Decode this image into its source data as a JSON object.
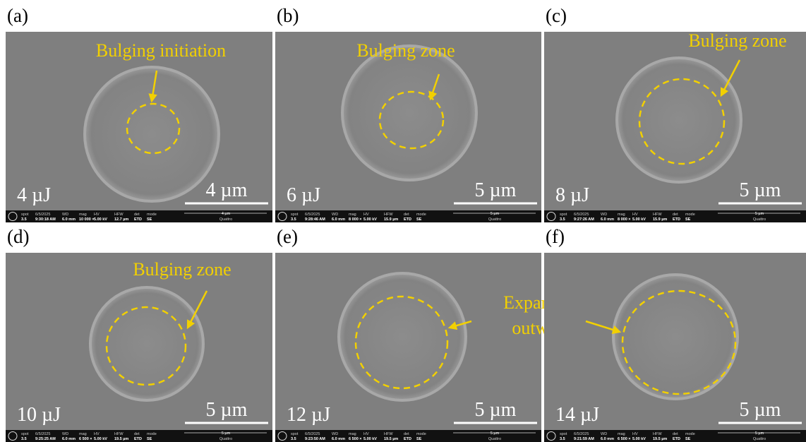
{
  "panels": [
    {
      "label": "(a)",
      "energy": "4 µJ",
      "annotation": [
        "Bulging initiation"
      ],
      "scale": "4 µm",
      "info": {
        "fields": [
          [
            "spot",
            "3.5"
          ],
          [
            "6/5/2025",
            "9:30:18 AM"
          ],
          [
            "WD",
            "6.0 mm"
          ],
          [
            "mag",
            "10 000 ×"
          ],
          [
            "HV",
            "5.00 kV"
          ],
          [
            "HFW",
            "12.7 µm"
          ],
          [
            "det",
            "ETD"
          ],
          [
            "mode",
            "SE"
          ]
        ],
        "bar": "4 µm",
        "instrument": "Quattro"
      }
    },
    {
      "label": "(b)",
      "energy": "6 µJ",
      "annotation": [
        "Bulging zone"
      ],
      "scale": "5 µm",
      "info": {
        "fields": [
          [
            "spot",
            "3.5"
          ],
          [
            "6/5/2025",
            "9:28:46 AM"
          ],
          [
            "WD",
            "6.0 mm"
          ],
          [
            "mag",
            "8 000 ×"
          ],
          [
            "HV",
            "5.00 kV"
          ],
          [
            "HFW",
            "15.9 µm"
          ],
          [
            "det",
            "ETD"
          ],
          [
            "mode",
            "SE"
          ]
        ],
        "bar": "5 µm",
        "instrument": "Quattro"
      }
    },
    {
      "label": "(c)",
      "energy": "8 µJ",
      "annotation": [
        "Bulging zone"
      ],
      "scale": "5 µm",
      "info": {
        "fields": [
          [
            "spot",
            "3.5"
          ],
          [
            "6/5/2025",
            "9:27:26 AM"
          ],
          [
            "WD",
            "6.0 mm"
          ],
          [
            "mag",
            "8 000 ×"
          ],
          [
            "HV",
            "5.00 kV"
          ],
          [
            "HFW",
            "15.9 µm"
          ],
          [
            "det",
            "ETD"
          ],
          [
            "mode",
            "SE"
          ]
        ],
        "bar": "5 µm",
        "instrument": "Quattro"
      }
    },
    {
      "label": "(d)",
      "energy": "10 µJ",
      "annotation": [
        "Bulging zone"
      ],
      "scale": "5 µm",
      "info": {
        "fields": [
          [
            "spot",
            "3.5"
          ],
          [
            "6/5/2025",
            "9:25:25 AM"
          ],
          [
            "WD",
            "6.0 mm"
          ],
          [
            "mag",
            "6 500 ×"
          ],
          [
            "HV",
            "5.00 kV"
          ],
          [
            "HFW",
            "19.5 µm"
          ],
          [
            "det",
            "ETD"
          ],
          [
            "mode",
            "SE"
          ]
        ],
        "bar": "5 µm",
        "instrument": "Quattro"
      }
    },
    {
      "label": "(e)",
      "energy": "12 µJ",
      "annotation": [
        "Expansion",
        "outward"
      ],
      "scale": "5 µm",
      "info": {
        "fields": [
          [
            "spot",
            "3.5"
          ],
          [
            "6/5/2025",
            "9:23:50 AM"
          ],
          [
            "WD",
            "6.0 mm"
          ],
          [
            "mag",
            "6 500 ×"
          ],
          [
            "HV",
            "5.00 kV"
          ],
          [
            "HFW",
            "19.5 µm"
          ],
          [
            "det",
            "ETD"
          ],
          [
            "mode",
            "SE"
          ]
        ],
        "bar": "5 µm",
        "instrument": "Quattro"
      }
    },
    {
      "label": "(f)",
      "energy": "14 µJ",
      "scale": "5 µm",
      "info": {
        "fields": [
          [
            "spot",
            "3.5"
          ],
          [
            "6/5/2025",
            "9:21:59 AM"
          ],
          [
            "WD",
            "6.0 mm"
          ],
          [
            "mag",
            "6 500 ×"
          ],
          [
            "HV",
            "5.00 kV"
          ],
          [
            "HFW",
            "19.5 µm"
          ],
          [
            "det",
            "ETD"
          ],
          [
            "mode",
            "SE"
          ]
        ],
        "bar": "5 µm",
        "instrument": "Quattro"
      }
    }
  ]
}
